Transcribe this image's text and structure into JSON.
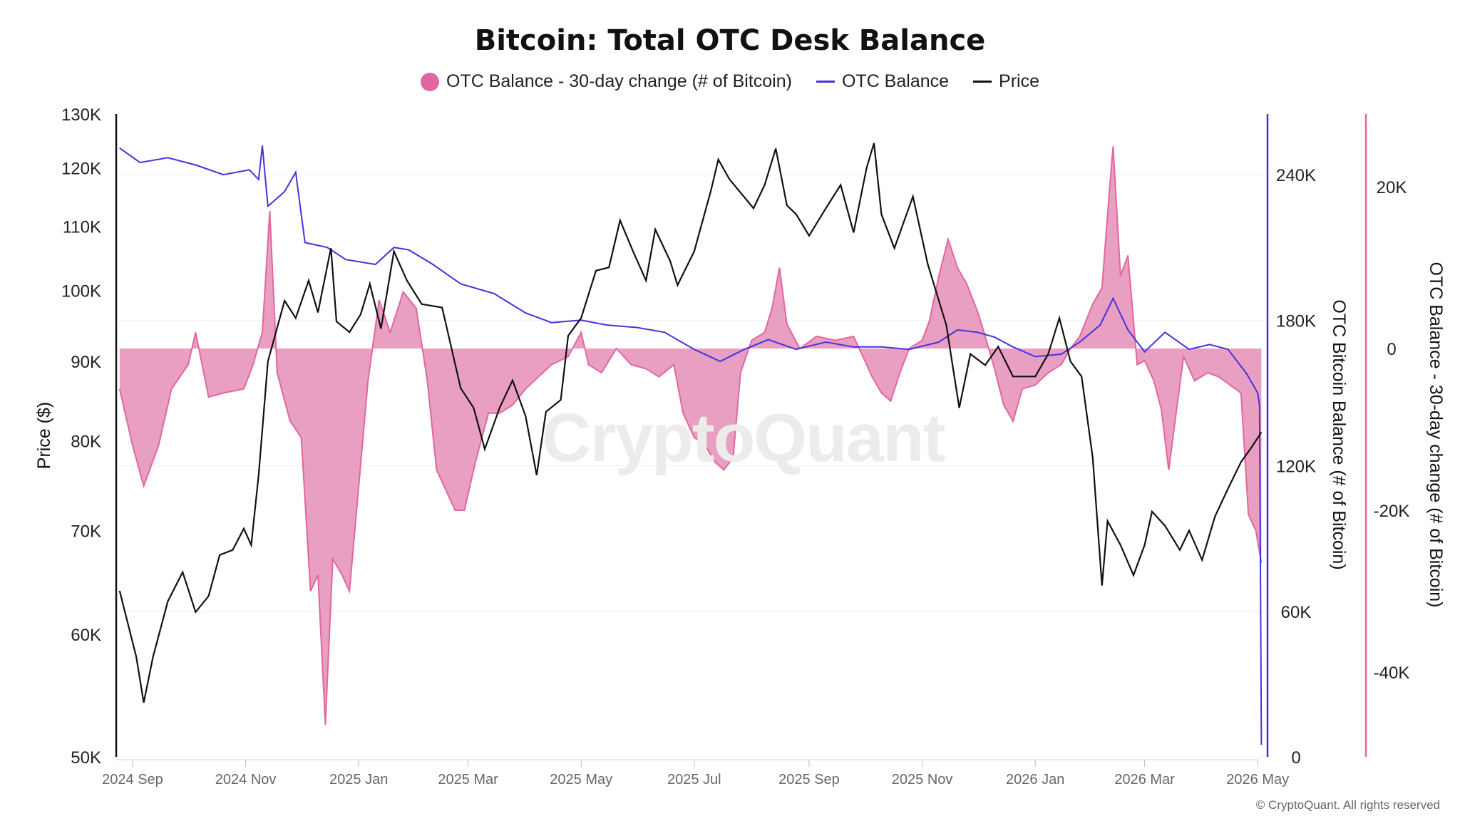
{
  "title": "Bitcoin: Total OTC Desk Balance",
  "legend": [
    {
      "label": "OTC Balance - 30-day change (# of Bitcoin)",
      "color": "#e0679f",
      "shape": "dot"
    },
    {
      "label": "OTC Balance",
      "color": "#4433dd",
      "shape": "line"
    },
    {
      "label": "Price",
      "color": "#111111",
      "shape": "line"
    }
  ],
  "watermark": "CryptoQuant",
  "copyright": "© CryptoQuant. All rights reserved",
  "chart_data": {
    "type": "line",
    "title": "Bitcoin: Total OTC Desk Balance",
    "x_ticks": [
      "2024 Sep",
      "2024 Nov",
      "2025 Jan",
      "2025 Mar",
      "2025 May",
      "2025 Jul",
      "2025 Sep",
      "2025 Nov",
      "2026 Jan",
      "2026 Mar",
      "2026 May"
    ],
    "y_left": {
      "label": "Price ($)",
      "scale": "log",
      "range": [
        50000,
        130000
      ],
      "ticks": [
        "50K",
        "60K",
        "70K",
        "80K",
        "90K",
        "100K",
        "110K",
        "120K",
        "130K"
      ]
    },
    "y_right1": {
      "label": "OTC Bitcoin Balance (# of Bitcoin)",
      "range": [
        0,
        265000
      ],
      "ticks": [
        "0",
        "60K",
        "120K",
        "180K",
        "240K"
      ]
    },
    "y_right2": {
      "label": "OTC Balance - 30-day change (# of Bitcoin)",
      "range": [
        -50000,
        28000
      ],
      "ticks": [
        "-40K",
        "-20K",
        "0",
        "20K"
      ]
    },
    "grid": true,
    "legend_position": "top-center",
    "series": [
      {
        "name": "Price",
        "axis": "left",
        "color": "#111111",
        "points": [
          [
            "2024-08-25",
            64000
          ],
          [
            "2024-09-03",
            58000
          ],
          [
            "2024-09-07",
            54200
          ],
          [
            "2024-09-12",
            58000
          ],
          [
            "2024-09-20",
            63000
          ],
          [
            "2024-09-28",
            65800
          ],
          [
            "2024-10-05",
            62000
          ],
          [
            "2024-10-12",
            63500
          ],
          [
            "2024-10-18",
            67500
          ],
          [
            "2024-10-25",
            68000
          ],
          [
            "2024-10-31",
            70200
          ],
          [
            "2024-11-04",
            68500
          ],
          [
            "2024-11-08",
            76000
          ],
          [
            "2024-11-13",
            90000
          ],
          [
            "2024-11-22",
            98500
          ],
          [
            "2024-11-28",
            96000
          ],
          [
            "2024-12-05",
            101500
          ],
          [
            "2024-12-10",
            96800
          ],
          [
            "2024-12-17",
            106500
          ],
          [
            "2024-12-20",
            95500
          ],
          [
            "2024-12-27",
            94000
          ],
          [
            "2025-01-02",
            96500
          ],
          [
            "2025-01-07",
            101000
          ],
          [
            "2025-01-13",
            94500
          ],
          [
            "2025-01-20",
            106000
          ],
          [
            "2025-01-27",
            101500
          ],
          [
            "2025-02-04",
            98000
          ],
          [
            "2025-02-15",
            97500
          ],
          [
            "2025-02-25",
            86500
          ],
          [
            "2025-03-04",
            84000
          ],
          [
            "2025-03-10",
            79000
          ],
          [
            "2025-03-18",
            84000
          ],
          [
            "2025-03-25",
            87500
          ],
          [
            "2025-04-01",
            83000
          ],
          [
            "2025-04-07",
            76000
          ],
          [
            "2025-04-12",
            83500
          ],
          [
            "2025-04-20",
            85000
          ],
          [
            "2025-04-24",
            93500
          ],
          [
            "2025-05-01",
            96000
          ],
          [
            "2025-05-09",
            103000
          ],
          [
            "2025-05-16",
            103500
          ],
          [
            "2025-05-22",
            111000
          ],
          [
            "2025-05-29",
            106000
          ],
          [
            "2025-06-05",
            101500
          ],
          [
            "2025-06-10",
            109500
          ],
          [
            "2025-06-18",
            104500
          ],
          [
            "2025-06-22",
            100800
          ],
          [
            "2025-07-01",
            106000
          ],
          [
            "2025-07-10",
            116000
          ],
          [
            "2025-07-14",
            121500
          ],
          [
            "2025-07-20",
            118000
          ],
          [
            "2025-08-02",
            113000
          ],
          [
            "2025-08-08",
            117000
          ],
          [
            "2025-08-14",
            123500
          ],
          [
            "2025-08-20",
            113500
          ],
          [
            "2025-08-25",
            112000
          ],
          [
            "2025-09-01",
            108500
          ],
          [
            "2025-09-10",
            113000
          ],
          [
            "2025-09-18",
            117000
          ],
          [
            "2025-09-25",
            109000
          ],
          [
            "2025-10-02",
            120000
          ],
          [
            "2025-10-06",
            124500
          ],
          [
            "2025-10-10",
            112000
          ],
          [
            "2025-10-17",
            106500
          ],
          [
            "2025-10-27",
            115000
          ],
          [
            "2025-11-04",
            104000
          ],
          [
            "2025-11-14",
            95000
          ],
          [
            "2025-11-21",
            84000
          ],
          [
            "2025-11-27",
            91000
          ],
          [
            "2025-12-05",
            89500
          ],
          [
            "2025-12-12",
            92000
          ],
          [
            "2025-12-20",
            88000
          ],
          [
            "2026-01-01",
            88000
          ],
          [
            "2026-01-08",
            91000
          ],
          [
            "2026-01-14",
            96000
          ],
          [
            "2026-01-20",
            90000
          ],
          [
            "2026-01-26",
            88000
          ],
          [
            "2026-02-01",
            78000
          ],
          [
            "2026-02-06",
            64500
          ],
          [
            "2026-02-09",
            71000
          ],
          [
            "2026-02-16",
            68500
          ],
          [
            "2026-02-23",
            65500
          ],
          [
            "2026-03-01",
            68500
          ],
          [
            "2026-03-05",
            72000
          ],
          [
            "2026-03-12",
            70500
          ],
          [
            "2026-03-20",
            68000
          ],
          [
            "2026-03-25",
            70000
          ],
          [
            "2026-04-01",
            67000
          ],
          [
            "2026-04-08",
            71500
          ],
          [
            "2026-04-15",
            74500
          ],
          [
            "2026-04-22",
            77500
          ],
          [
            "2026-04-27",
            79000
          ],
          [
            "2026-05-03",
            81000
          ]
        ]
      },
      {
        "name": "OTC Balance",
        "axis": "right1",
        "color": "#4433dd",
        "points": [
          [
            "2024-08-25",
            251000
          ],
          [
            "2024-09-05",
            245000
          ],
          [
            "2024-09-20",
            247000
          ],
          [
            "2024-10-05",
            244000
          ],
          [
            "2024-10-20",
            240000
          ],
          [
            "2024-11-03",
            242000
          ],
          [
            "2024-11-08",
            238000
          ],
          [
            "2024-11-10",
            252000
          ],
          [
            "2024-11-13",
            227000
          ],
          [
            "2024-11-22",
            233000
          ],
          [
            "2024-11-28",
            241000
          ],
          [
            "2024-12-03",
            212000
          ],
          [
            "2024-12-15",
            210000
          ],
          [
            "2024-12-25",
            205000
          ],
          [
            "2025-01-10",
            203000
          ],
          [
            "2025-01-20",
            210000
          ],
          [
            "2025-01-28",
            209000
          ],
          [
            "2025-02-10",
            203000
          ],
          [
            "2025-02-25",
            195000
          ],
          [
            "2025-03-15",
            191000
          ],
          [
            "2025-04-01",
            183000
          ],
          [
            "2025-04-15",
            179000
          ],
          [
            "2025-05-01",
            180000
          ],
          [
            "2025-05-15",
            178000
          ],
          [
            "2025-05-31",
            177000
          ],
          [
            "2025-06-15",
            175000
          ],
          [
            "2025-07-01",
            168000
          ],
          [
            "2025-07-15",
            163000
          ],
          [
            "2025-07-28",
            168000
          ],
          [
            "2025-08-10",
            172000
          ],
          [
            "2025-08-25",
            168000
          ],
          [
            "2025-09-10",
            171000
          ],
          [
            "2025-09-25",
            169000
          ],
          [
            "2025-10-10",
            169000
          ],
          [
            "2025-10-25",
            168000
          ],
          [
            "2025-11-10",
            171000
          ],
          [
            "2025-11-20",
            176000
          ],
          [
            "2025-12-01",
            175000
          ],
          [
            "2025-12-10",
            173000
          ],
          [
            "2025-12-20",
            169000
          ],
          [
            "2026-01-01",
            165000
          ],
          [
            "2026-01-15",
            166000
          ],
          [
            "2026-01-25",
            171000
          ],
          [
            "2026-02-05",
            178000
          ],
          [
            "2026-02-12",
            189000
          ],
          [
            "2026-02-20",
            176000
          ],
          [
            "2026-03-01",
            167000
          ],
          [
            "2026-03-12",
            175000
          ],
          [
            "2026-03-25",
            168000
          ],
          [
            "2026-04-05",
            170000
          ],
          [
            "2026-04-15",
            168000
          ],
          [
            "2026-04-25",
            158000
          ],
          [
            "2026-05-01",
            150000
          ],
          [
            "2026-05-02",
            145000
          ],
          [
            "2026-05-03",
            5000
          ]
        ]
      },
      {
        "name": "OTC Balance - 30-day change (# of Bitcoin)",
        "axis": "right2",
        "color": "#e0679f",
        "type": "area",
        "points": [
          [
            "2024-08-25",
            -5000
          ],
          [
            "2024-09-01",
            -12000
          ],
          [
            "2024-09-07",
            -17000
          ],
          [
            "2024-09-15",
            -12000
          ],
          [
            "2024-09-22",
            -5000
          ],
          [
            "2024-10-01",
            -2000
          ],
          [
            "2024-10-05",
            2000
          ],
          [
            "2024-10-12",
            -6000
          ],
          [
            "2024-10-20",
            -5500
          ],
          [
            "2024-10-31",
            -5000
          ],
          [
            "2024-11-05",
            -2000
          ],
          [
            "2024-11-10",
            2000
          ],
          [
            "2024-11-14",
            17000
          ],
          [
            "2024-11-18",
            -3000
          ],
          [
            "2024-11-25",
            -9000
          ],
          [
            "2024-12-01",
            -11000
          ],
          [
            "2024-12-06",
            -30000
          ],
          [
            "2024-12-10",
            -28000
          ],
          [
            "2024-12-14",
            -46500
          ],
          [
            "2024-12-18",
            -26000
          ],
          [
            "2024-12-23",
            -28000
          ],
          [
            "2024-12-27",
            -30000
          ],
          [
            "2025-01-01",
            -17000
          ],
          [
            "2025-01-06",
            -4000
          ],
          [
            "2025-01-12",
            6000
          ],
          [
            "2025-01-18",
            2000
          ],
          [
            "2025-01-25",
            7000
          ],
          [
            "2025-02-01",
            5000
          ],
          [
            "2025-02-07",
            -4000
          ],
          [
            "2025-02-12",
            -15000
          ],
          [
            "2025-02-17",
            -17500
          ],
          [
            "2025-02-22",
            -20000
          ],
          [
            "2025-02-27",
            -20000
          ],
          [
            "2025-03-05",
            -14000
          ],
          [
            "2025-03-12",
            -8000
          ],
          [
            "2025-03-18",
            -8000
          ],
          [
            "2025-03-25",
            -7000
          ],
          [
            "2025-04-01",
            -5000
          ],
          [
            "2025-04-08",
            -3500
          ],
          [
            "2025-04-15",
            -2000
          ],
          [
            "2025-04-24",
            -1000
          ],
          [
            "2025-05-01",
            2000
          ],
          [
            "2025-05-05",
            -2000
          ],
          [
            "2025-05-12",
            -3000
          ],
          [
            "2025-05-20",
            0
          ],
          [
            "2025-05-28",
            -2000
          ],
          [
            "2025-06-05",
            -2500
          ],
          [
            "2025-06-12",
            -3500
          ],
          [
            "2025-06-20",
            -2000
          ],
          [
            "2025-06-25",
            -8000
          ],
          [
            "2025-07-01",
            -11000
          ],
          [
            "2025-07-07",
            -12000
          ],
          [
            "2025-07-12",
            -14000
          ],
          [
            "2025-07-17",
            -15000
          ],
          [
            "2025-07-22",
            -13500
          ],
          [
            "2025-07-26",
            -3000
          ],
          [
            "2025-08-01",
            1000
          ],
          [
            "2025-08-08",
            2000
          ],
          [
            "2025-08-12",
            5000
          ],
          [
            "2025-08-16",
            10000
          ],
          [
            "2025-08-20",
            3000
          ],
          [
            "2025-08-27",
            0
          ],
          [
            "2025-09-05",
            1500
          ],
          [
            "2025-09-15",
            1000
          ],
          [
            "2025-09-25",
            1500
          ],
          [
            "2025-10-01",
            -1500
          ],
          [
            "2025-10-05",
            -3500
          ],
          [
            "2025-10-10",
            -5500
          ],
          [
            "2025-10-15",
            -6500
          ],
          [
            "2025-10-20",
            -3000
          ],
          [
            "2025-10-25",
            0
          ],
          [
            "2025-11-01",
            1000
          ],
          [
            "2025-11-05",
            3500
          ],
          [
            "2025-11-10",
            9000
          ],
          [
            "2025-11-15",
            13500
          ],
          [
            "2025-11-20",
            10000
          ],
          [
            "2025-11-25",
            8000
          ],
          [
            "2025-12-01",
            4500
          ],
          [
            "2025-12-05",
            1500
          ],
          [
            "2025-12-10",
            -2500
          ],
          [
            "2025-12-15",
            -7000
          ],
          [
            "2025-12-20",
            -9000
          ],
          [
            "2025-12-25",
            -5000
          ],
          [
            "2026-01-01",
            -4500
          ],
          [
            "2026-01-08",
            -3000
          ],
          [
            "2026-01-15",
            -2000
          ],
          [
            "2026-01-20",
            0
          ],
          [
            "2026-01-25",
            1500
          ],
          [
            "2026-02-01",
            5500
          ],
          [
            "2026-02-06",
            7500
          ],
          [
            "2026-02-10",
            19500
          ],
          [
            "2026-02-12",
            25000
          ],
          [
            "2026-02-16",
            9000
          ],
          [
            "2026-02-20",
            11500
          ],
          [
            "2026-02-25",
            -2000
          ],
          [
            "2026-03-01",
            -1500
          ],
          [
            "2026-03-06",
            -4000
          ],
          [
            "2026-03-10",
            -7500
          ],
          [
            "2026-03-14",
            -15000
          ],
          [
            "2026-03-18",
            -8000
          ],
          [
            "2026-03-22",
            -1000
          ],
          [
            "2026-03-28",
            -4000
          ],
          [
            "2026-04-04",
            -3000
          ],
          [
            "2026-04-10",
            -3500
          ],
          [
            "2026-04-16",
            -4500
          ],
          [
            "2026-04-22",
            -5500
          ],
          [
            "2026-04-26",
            -20500
          ],
          [
            "2026-04-30",
            -22500
          ],
          [
            "2026-05-03",
            -26500
          ]
        ]
      }
    ]
  }
}
